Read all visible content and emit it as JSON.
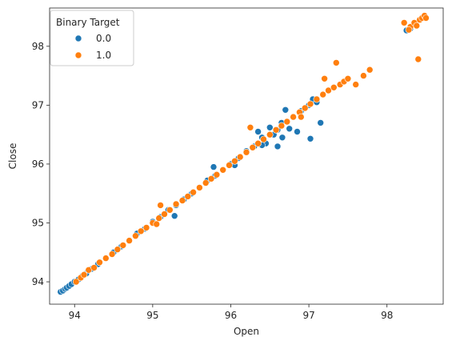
{
  "chart_data": {
    "type": "scatter",
    "xlabel": "Open",
    "ylabel": "Close",
    "xlim": [
      93.68,
      98.72
    ],
    "ylim": [
      93.62,
      98.65
    ],
    "x_ticks": [
      94,
      95,
      96,
      97,
      98
    ],
    "y_ticks": [
      94,
      95,
      96,
      97,
      98
    ],
    "x_tick_labels": [
      "94",
      "95",
      "96",
      "97",
      "98"
    ],
    "y_tick_labels": [
      "94",
      "95",
      "96",
      "97",
      "98"
    ],
    "grid": false,
    "legend": {
      "title": "Binary Target",
      "placement": "top-left",
      "entries": [
        "0.0",
        "1.0"
      ]
    },
    "series": [
      {
        "name": "0.0",
        "color": "#1f77b4",
        "x": [
          93.82,
          93.85,
          93.88,
          93.9,
          93.93,
          93.96,
          94.0,
          94.05,
          94.1,
          94.15,
          94.22,
          94.3,
          94.4,
          94.5,
          94.6,
          94.7,
          94.8,
          94.9,
          95.0,
          95.1,
          95.2,
          95.3,
          95.4,
          95.5,
          95.6,
          95.7,
          95.8,
          95.9,
          96.0,
          96.1,
          96.2,
          96.3,
          96.35,
          96.4,
          96.45,
          96.5,
          96.55,
          96.6,
          96.65,
          96.7,
          96.75,
          96.8,
          96.85,
          96.9,
          96.95,
          97.0,
          97.05,
          97.1,
          95.28,
          95.78,
          96.05,
          96.4,
          96.6,
          96.66,
          97.02,
          97.15,
          98.25,
          98.3
        ],
        "y": [
          93.83,
          93.85,
          93.88,
          93.9,
          93.93,
          93.96,
          94.0,
          94.04,
          94.1,
          94.14,
          94.22,
          94.3,
          94.4,
          94.5,
          94.6,
          94.7,
          94.82,
          94.9,
          95.02,
          95.1,
          95.22,
          95.3,
          95.4,
          95.5,
          95.6,
          95.72,
          95.8,
          95.9,
          96.0,
          96.1,
          96.22,
          96.3,
          96.55,
          96.45,
          96.35,
          96.62,
          96.5,
          96.58,
          96.7,
          96.92,
          96.6,
          96.8,
          96.55,
          96.9,
          96.95,
          97.0,
          97.1,
          97.05,
          95.12,
          95.95,
          95.98,
          96.32,
          96.3,
          96.45,
          96.43,
          96.7,
          98.27,
          98.3
        ]
      },
      {
        "name": "1.0",
        "color": "#ff7f0e",
        "x": [
          94.02,
          94.08,
          94.12,
          94.18,
          94.25,
          94.32,
          94.4,
          94.48,
          94.55,
          94.62,
          94.7,
          94.78,
          94.85,
          94.92,
          95.0,
          95.08,
          95.15,
          95.22,
          95.3,
          95.38,
          95.45,
          95.52,
          95.6,
          95.68,
          95.75,
          95.82,
          95.9,
          95.98,
          96.05,
          96.12,
          96.2,
          96.28,
          96.35,
          96.42,
          96.5,
          96.58,
          96.65,
          96.72,
          96.8,
          96.88,
          96.95,
          97.02,
          97.1,
          97.18,
          97.25,
          97.32,
          97.4,
          97.45,
          97.5,
          97.6,
          97.7,
          97.78,
          97.35,
          97.2,
          96.25,
          95.05,
          95.1,
          96.9,
          98.22,
          98.3,
          98.35,
          98.38,
          98.42,
          98.45,
          98.48,
          98.5,
          98.4,
          98.28
        ],
        "y": [
          94.0,
          94.07,
          94.12,
          94.2,
          94.24,
          94.33,
          94.4,
          94.47,
          94.55,
          94.62,
          94.7,
          94.78,
          94.86,
          94.92,
          95.0,
          95.08,
          95.15,
          95.22,
          95.32,
          95.38,
          95.45,
          95.52,
          95.6,
          95.68,
          95.75,
          95.82,
          95.9,
          95.98,
          96.05,
          96.12,
          96.2,
          96.28,
          96.35,
          96.42,
          96.5,
          96.58,
          96.65,
          96.72,
          96.8,
          96.88,
          96.95,
          97.02,
          97.1,
          97.18,
          97.25,
          97.3,
          97.35,
          97.4,
          97.45,
          97.35,
          97.5,
          97.6,
          97.72,
          97.45,
          96.62,
          94.98,
          95.3,
          96.8,
          98.4,
          98.33,
          98.4,
          98.35,
          98.45,
          98.48,
          98.52,
          98.48,
          97.78,
          98.28
        ]
      }
    ]
  }
}
